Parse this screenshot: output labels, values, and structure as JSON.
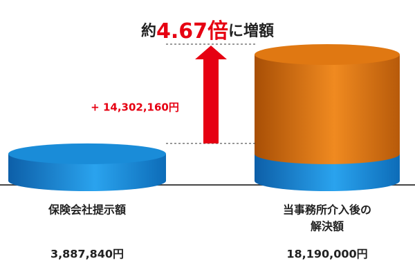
{
  "chart_data": {
    "type": "cylinder",
    "title": [
      "約",
      "4.67倍",
      "に増額"
    ],
    "categories": [
      [
        "保険会社提示額"
      ],
      [
        "当事務所介入後の",
        "解決額"
      ]
    ],
    "values": [
      3887840,
      18190000
    ],
    "value_labels": [
      "3,887,840円",
      "18,190,000円"
    ],
    "increase": {
      "value": 14302160,
      "label": "+ 14,302,160円"
    },
    "color": "#1a8cd8",
    "increase_color": "#e07812",
    "arrow_color": "#e60012"
  }
}
